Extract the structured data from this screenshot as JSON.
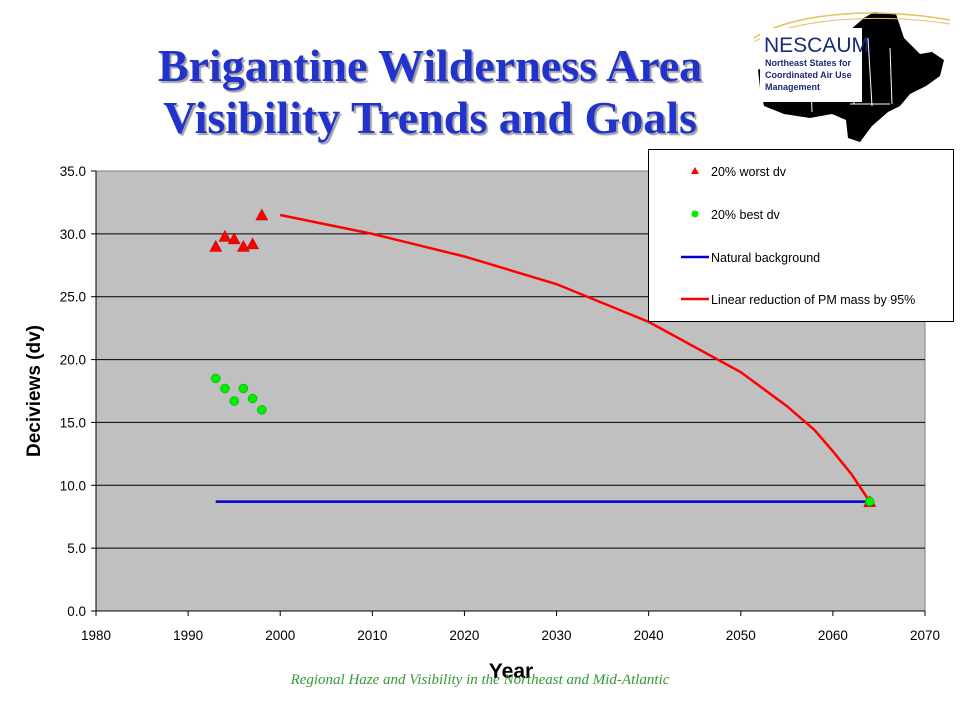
{
  "slide": {
    "title_line1": "Brigantine Wilderness Area",
    "title_line2": "Visibility Trends and Goals",
    "footer": "Regional Haze and Visibility in the Northeast and Mid-Atlantic",
    "logo": {
      "name": "NESCAUM",
      "subtitle_lines": [
        "Northeast States for",
        "Coordinated Air Use",
        "Management"
      ]
    }
  },
  "chart_data": {
    "type": "scatter",
    "title": "",
    "xlabel": "Year",
    "ylabel": "Deciviews (dv)",
    "xlim": [
      1980,
      2070
    ],
    "ylim": [
      0,
      35
    ],
    "x_ticks": [
      "1980",
      "1990",
      "2000",
      "2010",
      "2020",
      "2030",
      "2040",
      "2050",
      "2060",
      "2070"
    ],
    "y_ticks": [
      "0.0",
      "5.0",
      "10.0",
      "15.0",
      "20.0",
      "25.0",
      "30.0",
      "35.0"
    ],
    "grid": "horizontal",
    "legend_position": "top-right",
    "series": [
      {
        "name": "20% worst dv",
        "kind": "marker",
        "marker": "triangle",
        "color": "#ff0000",
        "points": [
          [
            1993,
            29.0
          ],
          [
            1994,
            29.8
          ],
          [
            1995,
            29.6
          ],
          [
            1996,
            29.0
          ],
          [
            1997,
            29.2
          ],
          [
            1998,
            31.5
          ],
          [
            2064,
            8.7
          ]
        ]
      },
      {
        "name": "20% best dv",
        "kind": "marker",
        "marker": "circle",
        "color": "#00ee00",
        "points": [
          [
            1993,
            18.5
          ],
          [
            1994,
            17.7
          ],
          [
            1995,
            16.7
          ],
          [
            1996,
            17.7
          ],
          [
            1997,
            16.9
          ],
          [
            1998,
            16.0
          ],
          [
            2064,
            8.7
          ]
        ]
      },
      {
        "name": "Natural background",
        "kind": "line",
        "color": "#0000cc",
        "points": [
          [
            1993,
            8.7
          ],
          [
            2064,
            8.7
          ]
        ]
      },
      {
        "name": "Linear reduction of PM mass by 95%",
        "kind": "line",
        "color": "#ff0000",
        "points": [
          [
            2000,
            31.5
          ],
          [
            2010,
            30.0
          ],
          [
            2020,
            28.2
          ],
          [
            2030,
            26.0
          ],
          [
            2040,
            23.0
          ],
          [
            2050,
            19.0
          ],
          [
            2055,
            16.3
          ],
          [
            2058,
            14.4
          ],
          [
            2060,
            12.7
          ],
          [
            2062,
            10.9
          ],
          [
            2064,
            8.7
          ]
        ]
      }
    ]
  }
}
